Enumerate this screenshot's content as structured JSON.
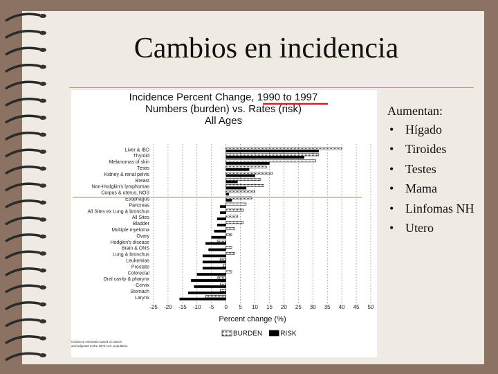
{
  "slide": {
    "title": "Cambios en incidencia",
    "list_heading": "Aumentan:",
    "items": [
      "Hígado",
      "Tiroides",
      "Testes",
      "Mama",
      "Linfomas NH",
      "Utero"
    ]
  },
  "chart_data": {
    "type": "bar",
    "orientation": "horizontal",
    "title": "Incidence Percent Change, 1990 to 1997",
    "subtitle": [
      "Numbers (burden) vs. Rates (risk)",
      "All Ages"
    ],
    "x_label": "Percent change (%)",
    "footnote": [
      "Incidence estimates based on SEER",
      "and adjusted to the 1970 U.S. population"
    ],
    "categories": [
      "Liver & IBD",
      "Thyroid",
      "Melanomas of skin",
      "Testis",
      "Kidney & renal pelvis",
      "Breast",
      "Non-Hodgkin's lymphomas",
      "Corpus & uterus, NOS",
      "Esophagus",
      "Pancreas",
      "All Sites ex Lung & bronchus",
      "All Sites",
      "Bladder",
      "Multiple myeloma",
      "Ovary",
      "Hodgkin's disease",
      "Brain & ONS",
      "Lung & bronchus",
      "Leukemias",
      "Prostate",
      "Colorectal",
      "Oral cavity & pharynx",
      "Cervix",
      "Stomach",
      "Larynx"
    ],
    "series": [
      {
        "name": "BURDEN",
        "color": "#ffffff",
        "values": [
          40,
          32,
          31,
          14,
          16,
          12,
          13,
          10,
          9,
          7,
          6,
          4,
          6,
          3,
          2,
          -3,
          2,
          3,
          -2,
          -1,
          2,
          -3,
          -2,
          -2,
          -7
        ]
      },
      {
        "name": "RISK",
        "color": "#000000",
        "values": [
          32,
          27,
          15,
          8,
          10,
          4,
          7,
          1,
          2,
          -2,
          -2,
          -3,
          -3,
          -4,
          -5,
          -7,
          -6,
          -8,
          -8,
          -8,
          -10,
          -12,
          -11,
          -13,
          -16
        ]
      }
    ],
    "xlim": [
      -25,
      50
    ],
    "xticks": [
      -25,
      -20,
      -15,
      -10,
      -5,
      0,
      5,
      10,
      15,
      20,
      25,
      30,
      35,
      40,
      45,
      50
    ],
    "grid": true
  }
}
